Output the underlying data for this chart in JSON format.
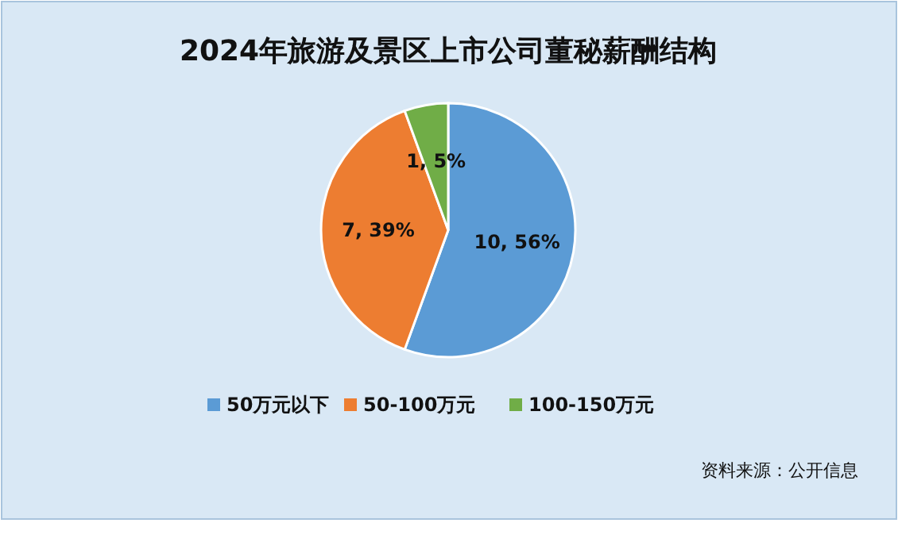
{
  "chart_data": {
    "type": "pie",
    "title": "2024年旅游及景区上市公司董秘薪酬结构",
    "categories": [
      "50万元以下",
      "50-100万元",
      "100-150万元"
    ],
    "values": [
      10,
      7,
      1
    ],
    "value_labels": [
      "10, 56%",
      "7, 39%",
      "1, 5%"
    ],
    "colors": [
      "#5b9bd5",
      "#ed7d31",
      "#70ad47"
    ],
    "legend": "bottom",
    "annotations": [
      "资料来源：公开信息"
    ]
  }
}
